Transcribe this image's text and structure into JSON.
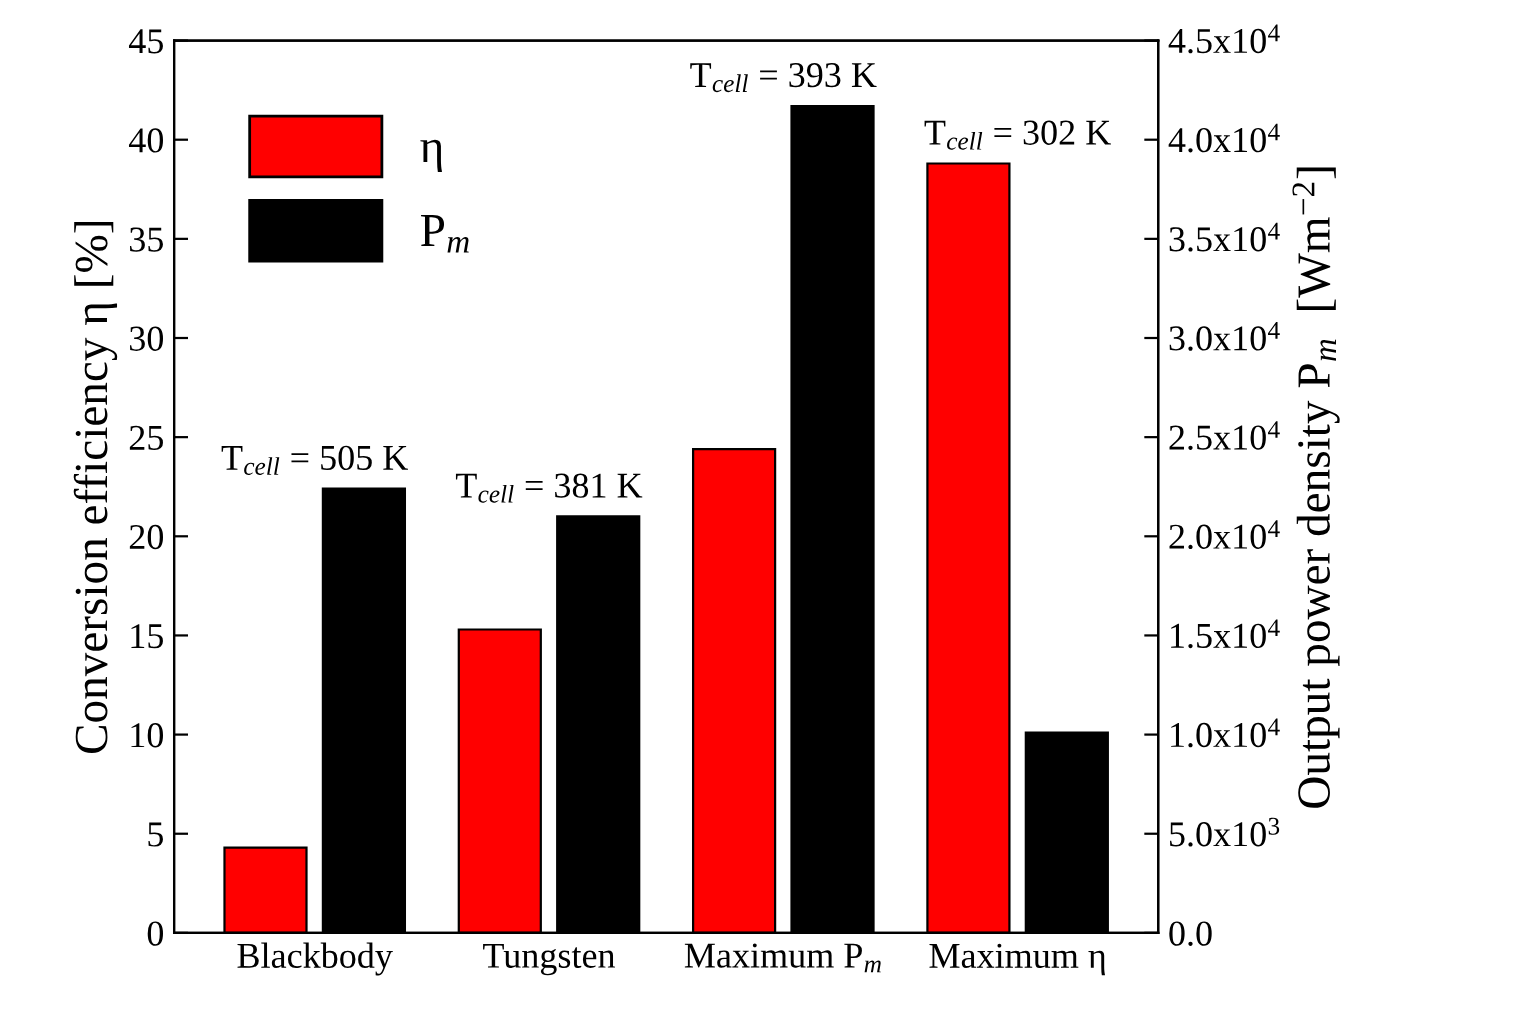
{
  "chart_data": {
    "type": "bar",
    "categories": [
      "Blackbody",
      "Tungsten",
      "Maximum P$_{m}$",
      "Maximum η"
    ],
    "series": [
      {
        "name": "η",
        "color": "#ff0000",
        "values": [
          4.3,
          15.3,
          24.4,
          38.8
        ]
      },
      {
        "name": "P$_{m}$",
        "color": "#000000",
        "axis": "y2",
        "values": [
          22400,
          21000,
          41700,
          10100
        ]
      }
    ],
    "ylabel": "Conversion efficiency η [%]",
    "y2label": "Output power density P$_{m}$  [Wm$^{−2}$]",
    "ylim": [
      0,
      45
    ],
    "yticks": [
      0,
      5,
      10,
      15,
      20,
      25,
      30,
      35,
      40,
      45
    ],
    "y2lim": [
      0,
      45000
    ],
    "y2ticks": [
      {
        "value": 0,
        "label": "0.0"
      },
      {
        "value": 5000,
        "label": "5.0x10$^{3}$"
      },
      {
        "value": 10000,
        "label": "1.0x10$^{4}$"
      },
      {
        "value": 15000,
        "label": "1.5x10$^{4}$"
      },
      {
        "value": 20000,
        "label": "2.0x10$^{4}$"
      },
      {
        "value": 25000,
        "label": "2.5x10$^{4}$"
      },
      {
        "value": 30000,
        "label": "3.0x10$^{4}$"
      },
      {
        "value": 35000,
        "label": "3.5x10$^{4}$"
      },
      {
        "value": 40000,
        "label": "4.0x10$^{4}$"
      },
      {
        "value": 45000,
        "label": "4.5x10$^{4}$"
      }
    ],
    "annotations": [
      {
        "text": "T$_{cell}$ = 505 K",
        "x": "Blackbody",
        "y": 22.4
      },
      {
        "text": "T$_{cell}$ = 381 K",
        "x": "Tungsten",
        "y": 21.0
      },
      {
        "text": "T$_{cell}$ = 393 K",
        "x": "Maximum P$_{m}$",
        "y": 41.7
      },
      {
        "text": "T$_{cell}$ = 302 K",
        "x": "Maximum η",
        "y": 38.8
      }
    ],
    "legend": "top left",
    "grid": false
  }
}
